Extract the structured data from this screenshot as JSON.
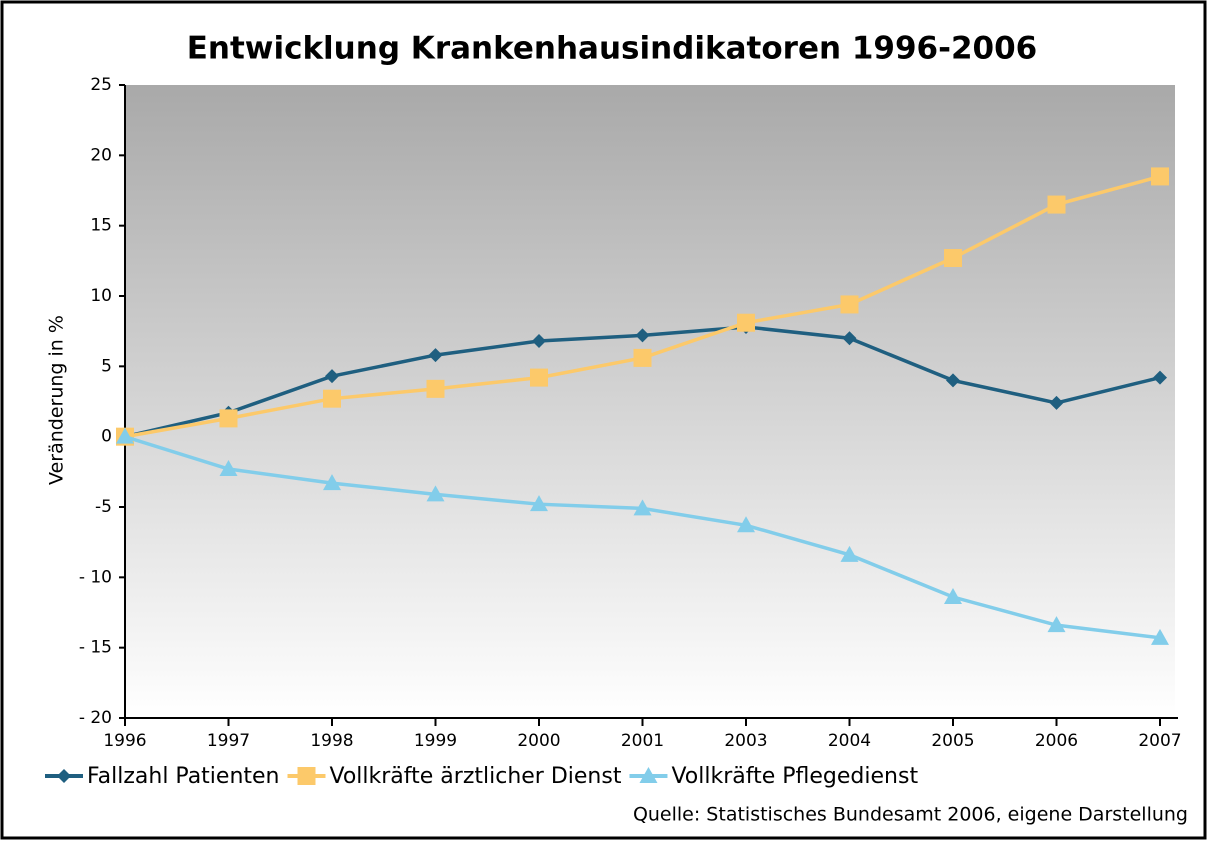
{
  "chart_data": {
    "type": "line",
    "title": "Entwicklung Krankenhausindikatoren 1996-2006",
    "ylabel": "Veränderung in %",
    "source": "Quelle: Statistisches Bundesamt 2006, eigene Darstellung",
    "categories": [
      "1996",
      "1997",
      "1998",
      "1999",
      "2000",
      "2001",
      "2003",
      "2004",
      "2005",
      "2006",
      "2007"
    ],
    "series": [
      {
        "name": "Fallzahl Patienten",
        "color": "#1f5f80",
        "marker": "diamond",
        "values": [
          0,
          1.7,
          4.3,
          5.8,
          6.8,
          7.2,
          7.8,
          7.0,
          4.0,
          2.4,
          4.2
        ]
      },
      {
        "name": "Vollkräfte ärztlicher Dienst",
        "color": "#fcc96a",
        "marker": "square",
        "values": [
          0,
          1.3,
          2.7,
          3.4,
          4.2,
          5.6,
          8.1,
          9.4,
          12.7,
          16.5,
          18.5
        ]
      },
      {
        "name": "Vollkräfte Pflegedienst",
        "color": "#82cdea",
        "marker": "triangle",
        "values": [
          0,
          -2.3,
          -3.3,
          -4.1,
          -4.8,
          -5.1,
          -6.3,
          -8.4,
          -11.4,
          -13.4,
          -14.3
        ]
      }
    ],
    "ylim": [
      -20,
      25
    ],
    "yticks": [
      {
        "value": -20,
        "label": "- 20"
      },
      {
        "value": -15,
        "label": "- 15"
      },
      {
        "value": -10,
        "label": "- 10"
      },
      -5,
      0,
      5,
      10,
      15,
      20,
      25
    ],
    "grid": false,
    "legend": "bottom"
  }
}
